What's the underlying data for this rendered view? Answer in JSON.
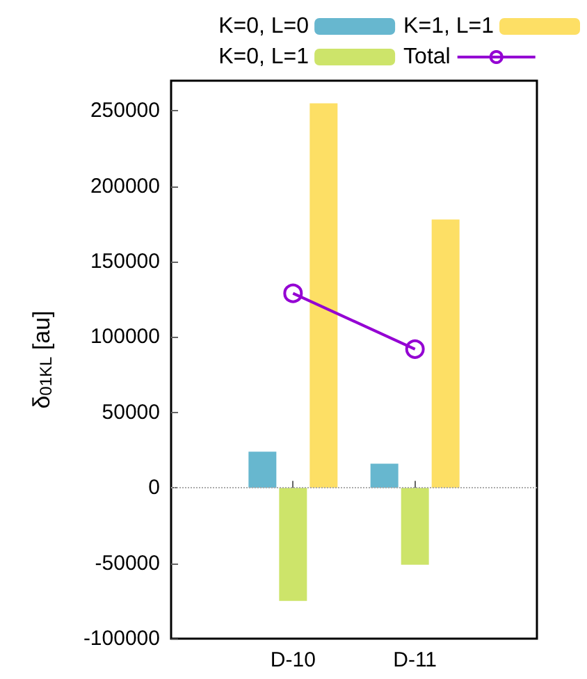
{
  "chart_data": {
    "type": "bar",
    "ylabel": "δ$_{01KL}$ [au]",
    "categories": [
      "D-10",
      "D-11"
    ],
    "series": [
      {
        "name": "K=0, L=0",
        "color": "#67b7cf",
        "values": [
          24000,
          16000
        ]
      },
      {
        "name": "K=0, L=1",
        "color": "#cde46a",
        "values": [
          -75000,
          -51000
        ]
      },
      {
        "name": "K=1, L=1",
        "color": "#fddf65",
        "values": [
          255000,
          178000
        ]
      },
      {
        "name": "Total",
        "type": "line",
        "color": "#9400d3",
        "marker": "circle",
        "values": [
          129000,
          92000
        ]
      }
    ],
    "ylim": [
      -100000,
      270000
    ],
    "yticks": [
      -100000,
      -50000,
      0,
      50000,
      100000,
      150000,
      200000,
      250000
    ],
    "ref_lines": [
      {
        "axis": "y",
        "value": 0,
        "color": "#aaaaaa",
        "line_style": "dotted"
      }
    ],
    "grid": false,
    "legend": "top"
  }
}
